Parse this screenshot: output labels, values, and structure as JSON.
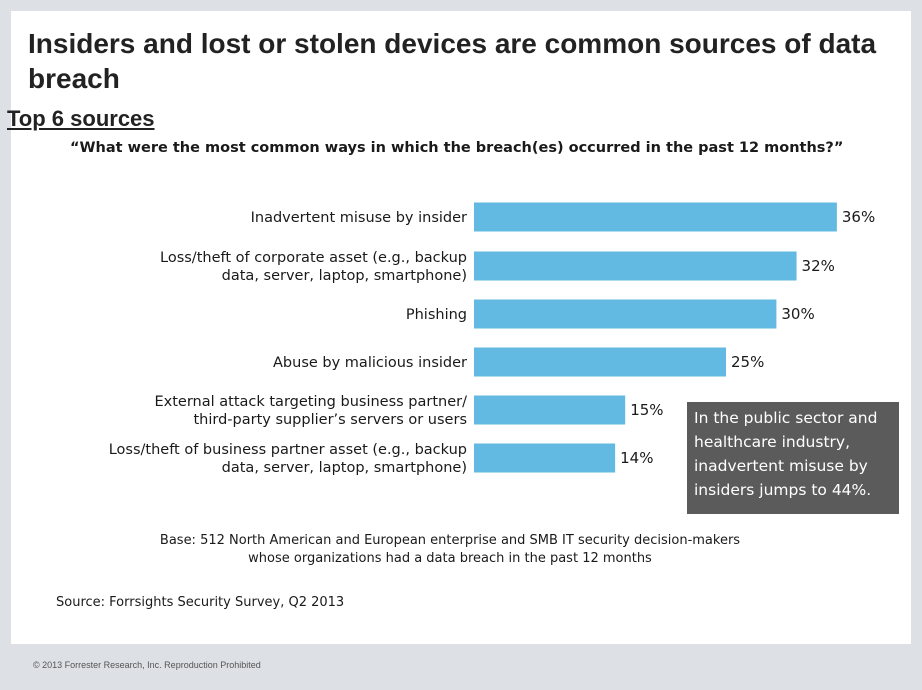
{
  "title": "Insiders and lost or stolen devices are common sources of data breach",
  "subtitle": "Top 6 sources",
  "question": "“What were the most common ways in which the breach(es) occurred in the past 12 months?”",
  "callout": "In the public sector and healthcare industry, inadvertent misuse by insiders jumps to 44%.",
  "base": {
    "line1": "Base: 512 North American and European enterprise and SMB IT security decision-makers",
    "line2": "whose organizations had a data breach in the past 12 months"
  },
  "source": "Source: Forrsights Security Survey, Q2 2013",
  "footer": "© 2013 Forrester Research, Inc. Reproduction Prohibited",
  "colors": {
    "bar": "#62b9e2",
    "callout_bg": "#5b5b5b",
    "text": "#1a1a1a"
  },
  "chart_data": {
    "type": "bar",
    "orientation": "horizontal",
    "title": "Top 6 sources",
    "categories": [
      [
        "Inadvertent misuse by insider"
      ],
      [
        "Loss/theft of corporate asset (e.g., backup",
        "data, server, laptop, smartphone)"
      ],
      [
        "Phishing"
      ],
      [
        "Abuse by malicious insider"
      ],
      [
        "External attack targeting business partner/",
        "third-party supplier’s servers or users"
      ],
      [
        "Loss/theft of business partner asset (e.g., backup",
        "data, server, laptop, smartphone)"
      ]
    ],
    "values": [
      36,
      32,
      30,
      25,
      15,
      14
    ],
    "value_labels": [
      "36%",
      "32%",
      "30%",
      "25%",
      "15%",
      "14%"
    ],
    "unit": "%",
    "grid": false,
    "legend": "none"
  }
}
